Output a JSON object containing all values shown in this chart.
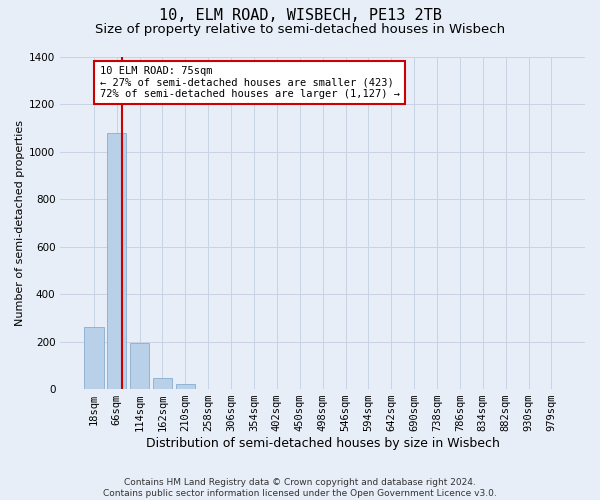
{
  "title": "10, ELM ROAD, WISBECH, PE13 2TB",
  "subtitle": "Size of property relative to semi-detached houses in Wisbech",
  "xlabel": "Distribution of semi-detached houses by size in Wisbech",
  "ylabel": "Number of semi-detached properties",
  "footer_line1": "Contains HM Land Registry data © Crown copyright and database right 2024.",
  "footer_line2": "Contains public sector information licensed under the Open Government Licence v3.0.",
  "bar_labels": [
    "18sqm",
    "66sqm",
    "114sqm",
    "162sqm",
    "210sqm",
    "258sqm",
    "306sqm",
    "354sqm",
    "402sqm",
    "450sqm",
    "498sqm",
    "546sqm",
    "594sqm",
    "642sqm",
    "690sqm",
    "738sqm",
    "786sqm",
    "834sqm",
    "882sqm",
    "930sqm",
    "979sqm"
  ],
  "bar_values": [
    260,
    1080,
    195,
    45,
    20,
    0,
    0,
    0,
    0,
    0,
    0,
    0,
    0,
    0,
    0,
    0,
    0,
    0,
    0,
    0,
    0
  ],
  "bar_color": "#b8d0e8",
  "bar_edge_color": "#88aed0",
  "grid_color": "#c8d4e4",
  "background_color": "#e8eef8",
  "property_line_x": 1.22,
  "annotation_text_line1": "10 ELM ROAD: 75sqm",
  "annotation_text_line2": "← 27% of semi-detached houses are smaller (423)",
  "annotation_text_line3": "72% of semi-detached houses are larger (1,127) →",
  "annotation_box_facecolor": "#ffffff",
  "annotation_border_color": "#cc0000",
  "vline_color": "#cc0000",
  "ylim": [
    0,
    1400
  ],
  "yticks": [
    0,
    200,
    400,
    600,
    800,
    1000,
    1200,
    1400
  ],
  "title_fontsize": 11,
  "subtitle_fontsize": 9.5,
  "xlabel_fontsize": 9,
  "ylabel_fontsize": 8,
  "tick_fontsize": 7.5,
  "annotation_fontsize": 7.5,
  "footer_fontsize": 6.5
}
